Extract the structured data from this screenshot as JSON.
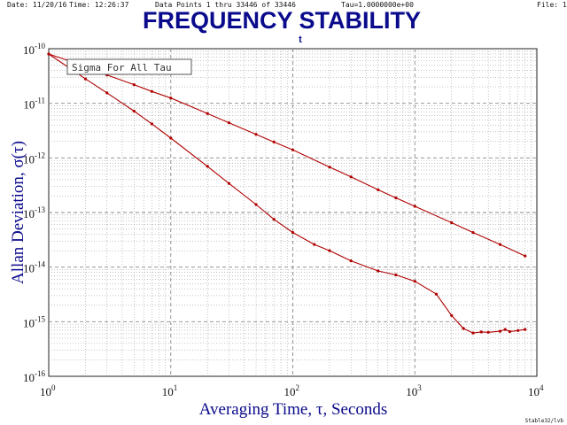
{
  "header": {
    "date": "Date: 11/20/16",
    "time": "Time: 12:26:37",
    "data_points": "Data Points 1 thru 33446 of 33446",
    "tau": "Tau=1.0000000e+00",
    "file": "File: 1"
  },
  "footer": "Stable32/lvb",
  "colors": {
    "title": "#0a0a8c",
    "series": "#b00000",
    "grid": "#8a8a8a"
  },
  "chart_data": {
    "type": "line",
    "title": "FREQUENCY STABILITY",
    "subtitle": "t",
    "xlabel": "Averaging Time, τ, Seconds",
    "ylabel": "Allan Deviation, σ(τ)",
    "xscale": "log",
    "yscale": "log",
    "xlim": [
      1,
      10000
    ],
    "ylim": [
      1e-16,
      1e-10
    ],
    "x_tick_labels": [
      {
        "base": "10",
        "exp": "0"
      },
      {
        "base": "10",
        "exp": "1"
      },
      {
        "base": "10",
        "exp": "2"
      },
      {
        "base": "10",
        "exp": "3"
      },
      {
        "base": "10",
        "exp": "4"
      }
    ],
    "y_tick_labels": [
      {
        "base": "10",
        "exp": "-10"
      },
      {
        "base": "10",
        "exp": "-11"
      },
      {
        "base": "10",
        "exp": "-12"
      },
      {
        "base": "10",
        "exp": "-13"
      },
      {
        "base": "10",
        "exp": "-14"
      },
      {
        "base": "10",
        "exp": "-15"
      },
      {
        "base": "10",
        "exp": "-16"
      }
    ],
    "grid": true,
    "legend": {
      "text": "Sigma For All Tau",
      "position": "top-left"
    },
    "series": [
      {
        "x": [
          1,
          1.5,
          2,
          3,
          5,
          7,
          10,
          20,
          30,
          50,
          70,
          100,
          200,
          300,
          500,
          700,
          1000,
          2000,
          3000,
          5000,
          8000
        ],
        "y": [
          8e-11,
          5.9e-11,
          4.5e-11,
          3.3e-11,
          2.2e-11,
          1.65e-11,
          1.25e-11,
          6.5e-12,
          4.4e-12,
          2.7e-12,
          1.95e-12,
          1.4e-12,
          6.8e-13,
          4.5e-13,
          2.6e-13,
          1.85e-13,
          1.3e-13,
          6.5e-14,
          4.3e-14,
          2.6e-14,
          1.6e-14
        ]
      },
      {
        "x": [
          1,
          2,
          3,
          5,
          7,
          10,
          20,
          30,
          50,
          70,
          100,
          150,
          200,
          300,
          500,
          700,
          1000,
          1500,
          2000,
          2500,
          3000,
          3500,
          4000,
          5000,
          5500,
          6000,
          7000,
          8000
        ],
        "y": [
          8e-11,
          2.8e-11,
          1.55e-11,
          7.2e-12,
          4.2e-12,
          2.3e-12,
          7e-13,
          3.4e-13,
          1.4e-13,
          7.5e-14,
          4.3e-14,
          2.6e-14,
          2e-14,
          1.3e-14,
          8.5e-15,
          7.2e-15,
          5.5e-15,
          3.2e-15,
          1.3e-15,
          7.5e-16,
          6.2e-16,
          6.5e-16,
          6.4e-16,
          6.7e-16,
          7.2e-16,
          6.6e-16,
          6.9e-16,
          7.2e-16
        ]
      }
    ]
  }
}
